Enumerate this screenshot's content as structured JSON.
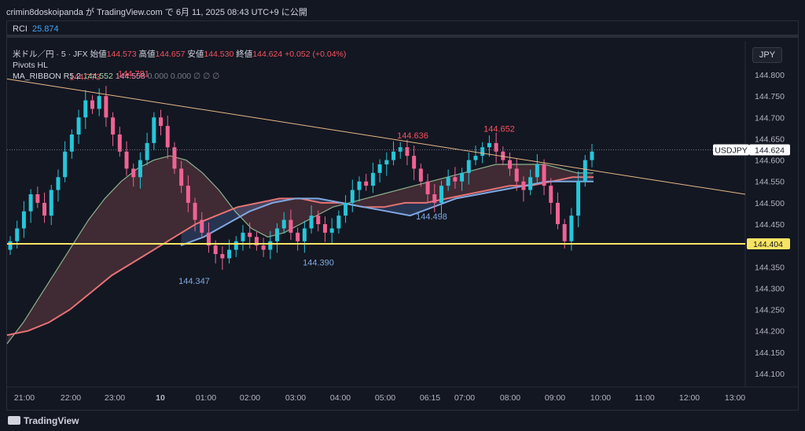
{
  "header": {
    "text": "crimin8doskoipanda が TradingView.com で 6月 11, 2025 08:43 UTC+9 に公開"
  },
  "rci": {
    "label": "RCI",
    "value": "25.874"
  },
  "legend": {
    "symbol": "米ドル／円 · 5 · JFX",
    "open_label": "始値",
    "open": "144.573",
    "high_label": "高値",
    "high": "144.657",
    "low_label": "安値",
    "low": "144.530",
    "close_label": "終値",
    "close": "144.624",
    "change": "+0.052 (+0.04%)",
    "pivots": "Pivots HL",
    "ma_label": "MA_RIBBON R5.2",
    "ma_v1": "144.552",
    "ma_v2": "144.558",
    "ma_rest": "0.000 0.000 ∅ ∅ ∅"
  },
  "currency": "JPY",
  "footer": {
    "brand": "TradingView"
  },
  "colors": {
    "up": "#26c6da",
    "down": "#f06292",
    "fast_ma": "#a5d6a7",
    "slow_ma": "#e57373",
    "mid_ma": "#7fa8e0",
    "hline": "#f7e463",
    "trend": "#e8b887"
  },
  "chart_data": {
    "type": "candlestick",
    "ylim": [
      144.05,
      144.85
    ],
    "yticks": [
      "144.800",
      "144.750",
      "144.700",
      "144.650",
      "144.600",
      "144.550",
      "144.500",
      "144.450",
      "144.400",
      "144.350",
      "144.300",
      "144.250",
      "144.200",
      "144.150",
      "144.100"
    ],
    "xticks": [
      "21:00",
      "22:00",
      "23:00",
      "10",
      "01:00",
      "02:00",
      "03:00",
      "04:00",
      "05:00",
      "06:15",
      "07:00",
      "08:00",
      "09:00",
      "10:00",
      "11:00",
      "12:00",
      "13:00"
    ],
    "last_price": {
      "label": "USDJPY",
      "value": 144.624
    },
    "horizontal_line": {
      "value": 144.404,
      "label": "144.404"
    },
    "pivots": [
      {
        "label": "144.773",
        "value": 144.773,
        "type": "high"
      },
      {
        "label": "144.781",
        "value": 144.781,
        "type": "high"
      },
      {
        "label": "144.347",
        "value": 144.347,
        "type": "low"
      },
      {
        "label": "144.390",
        "value": 144.39,
        "type": "low"
      },
      {
        "label": "144.636",
        "value": 144.636,
        "type": "high"
      },
      {
        "label": "144.498",
        "value": 144.498,
        "type": "low"
      },
      {
        "label": "144.652",
        "value": 144.652,
        "type": "high"
      }
    ],
    "trendline": {
      "from": 144.79,
      "to": 144.52
    },
    "candles_close": [
      144.41,
      144.44,
      144.48,
      144.52,
      144.5,
      144.47,
      144.53,
      144.56,
      144.62,
      144.66,
      144.7,
      144.74,
      144.72,
      144.75,
      144.7,
      144.66,
      144.62,
      144.58,
      144.56,
      144.6,
      144.64,
      144.7,
      144.68,
      144.63,
      144.58,
      144.54,
      144.5,
      144.46,
      144.43,
      144.4,
      144.38,
      144.37,
      144.39,
      144.41,
      144.43,
      144.42,
      144.4,
      144.39,
      144.41,
      144.44,
      144.46,
      144.43,
      144.41,
      144.44,
      144.47,
      144.45,
      144.43,
      144.44,
      144.47,
      144.5,
      144.53,
      144.55,
      144.54,
      144.57,
      144.59,
      144.6,
      144.62,
      144.63,
      144.61,
      144.58,
      144.55,
      144.52,
      144.5,
      144.54,
      144.56,
      144.55,
      144.57,
      144.6,
      144.61,
      144.63,
      144.64,
      144.62,
      144.6,
      144.58,
      144.55,
      144.53,
      144.56,
      144.59,
      144.54,
      144.5,
      144.45,
      144.41,
      144.47,
      144.55,
      144.6,
      144.62
    ],
    "fast_ma": [
      144.17,
      144.22,
      144.28,
      144.34,
      144.4,
      144.46,
      144.51,
      144.55,
      144.58,
      144.6,
      144.61,
      144.6,
      144.57,
      144.53,
      144.48,
      144.44,
      144.42,
      144.43,
      144.45,
      144.47,
      144.49,
      144.5,
      144.51,
      144.52,
      144.53,
      144.54,
      144.55,
      144.56,
      144.57,
      144.58,
      144.59,
      144.59,
      144.59,
      144.59,
      144.58,
      144.57,
      144.57
    ],
    "slow_ma": [
      144.19,
      144.2,
      144.22,
      144.25,
      144.29,
      144.33,
      144.36,
      144.39,
      144.42,
      144.45,
      144.47,
      144.49,
      144.5,
      144.51,
      144.51,
      144.5,
      144.5,
      144.49,
      144.49,
      144.5,
      144.5,
      144.51,
      144.52,
      144.53,
      144.54,
      144.54,
      144.55,
      144.56,
      144.56
    ],
    "mid_ma": [
      144.4,
      144.42,
      144.45,
      144.48,
      144.5,
      144.51,
      144.51,
      144.5,
      144.49,
      144.48,
      144.47,
      144.49,
      144.51,
      144.52,
      144.53,
      144.54,
      144.55,
      144.55,
      144.55
    ]
  }
}
